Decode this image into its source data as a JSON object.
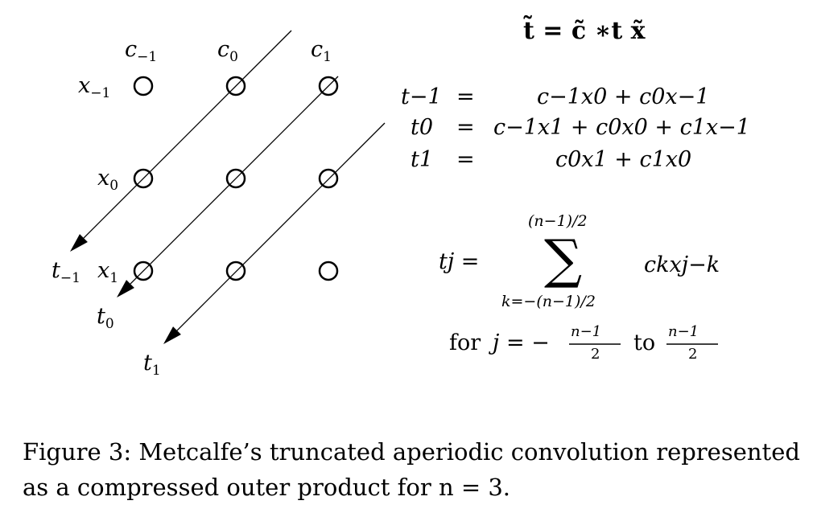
{
  "diagram": {
    "columns": [
      "c",
      "c",
      "c"
    ],
    "column_subs": [
      "−1",
      "0",
      "1"
    ],
    "rows": [
      "x",
      "x",
      "x"
    ],
    "row_subs": [
      "−1",
      "0",
      "1"
    ],
    "outputs": [
      "t",
      "t",
      "t"
    ],
    "output_subs": [
      "−1",
      "0",
      "1"
    ]
  },
  "equations": {
    "top": "t̃ = c̃ ∗t x̃",
    "lines": [
      {
        "lhs": "t−1",
        "eq": "=",
        "rhs": "c−1x0 + c0x−1"
      },
      {
        "lhs": "t0",
        "eq": "=",
        "rhs": "c−1x1 + c0x0 + c1x−1"
      },
      {
        "lhs": "t1",
        "eq": "=",
        "rhs": "c0x1 + c1x0"
      }
    ],
    "sum_lhs": "tj =",
    "sum_upper": "(n−1)/2",
    "sum_symbol": "∑",
    "sum_lower": "k=−(n−1)/2",
    "sum_term": "ckxj−k",
    "range_for": "for",
    "range_j": "j = −",
    "range_num": "n−1",
    "range_den": "2",
    "range_to": "to"
  },
  "caption": {
    "text": "Figure 3: Metcalfe’s truncated aperiodic convolution represented as a compressed outer product for n = 3."
  }
}
